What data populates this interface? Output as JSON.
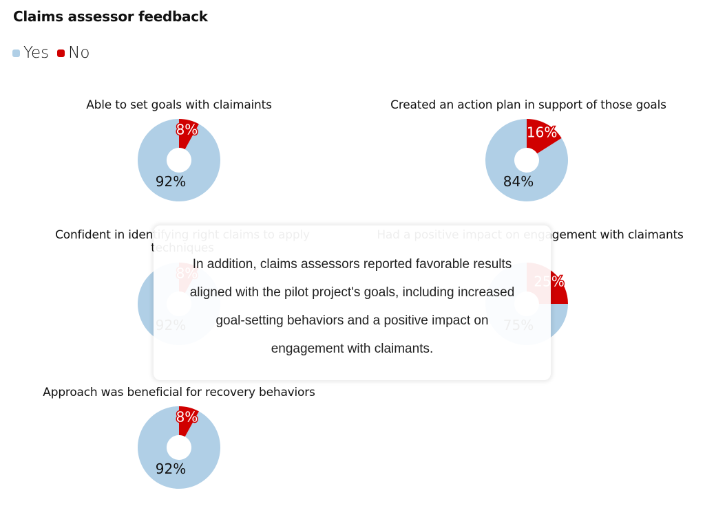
{
  "chart_data": {
    "type": "pie",
    "title": "Claims assessor feedback",
    "legend": [
      {
        "name": "Yes",
        "color": "#b0cfe6"
      },
      {
        "name": "No",
        "color": "#d00000"
      }
    ],
    "legend_position": "top-left",
    "charts": [
      {
        "title": "Able to set goals with claimaints",
        "yes": 92,
        "no": 8,
        "yes_label": "92%",
        "no_label": "8%"
      },
      {
        "title": "Created an action plan in support of those goals",
        "yes": 84,
        "no": 16,
        "yes_label": "84%",
        "no_label": "16%"
      },
      {
        "title": "Confident in identifying right claims to apply techniques",
        "yes": 92,
        "no": 8,
        "yes_label": "92%",
        "no_label": "8%"
      },
      {
        "title": "Had a positive impact on engagement with claimants",
        "yes": 75,
        "no": 25,
        "yes_label": "75%",
        "no_label": "25%"
      },
      {
        "title": "Approach was beneficial for recovery behaviors",
        "yes": 92,
        "no": 8,
        "yes_label": "92%",
        "no_label": "8%"
      }
    ]
  },
  "overlay": {
    "text": "In addition, claims assessors reported favorable results aligned with the pilot project's goals, including increased goal-setting behaviors and a positive impact on engagement with claimants."
  }
}
